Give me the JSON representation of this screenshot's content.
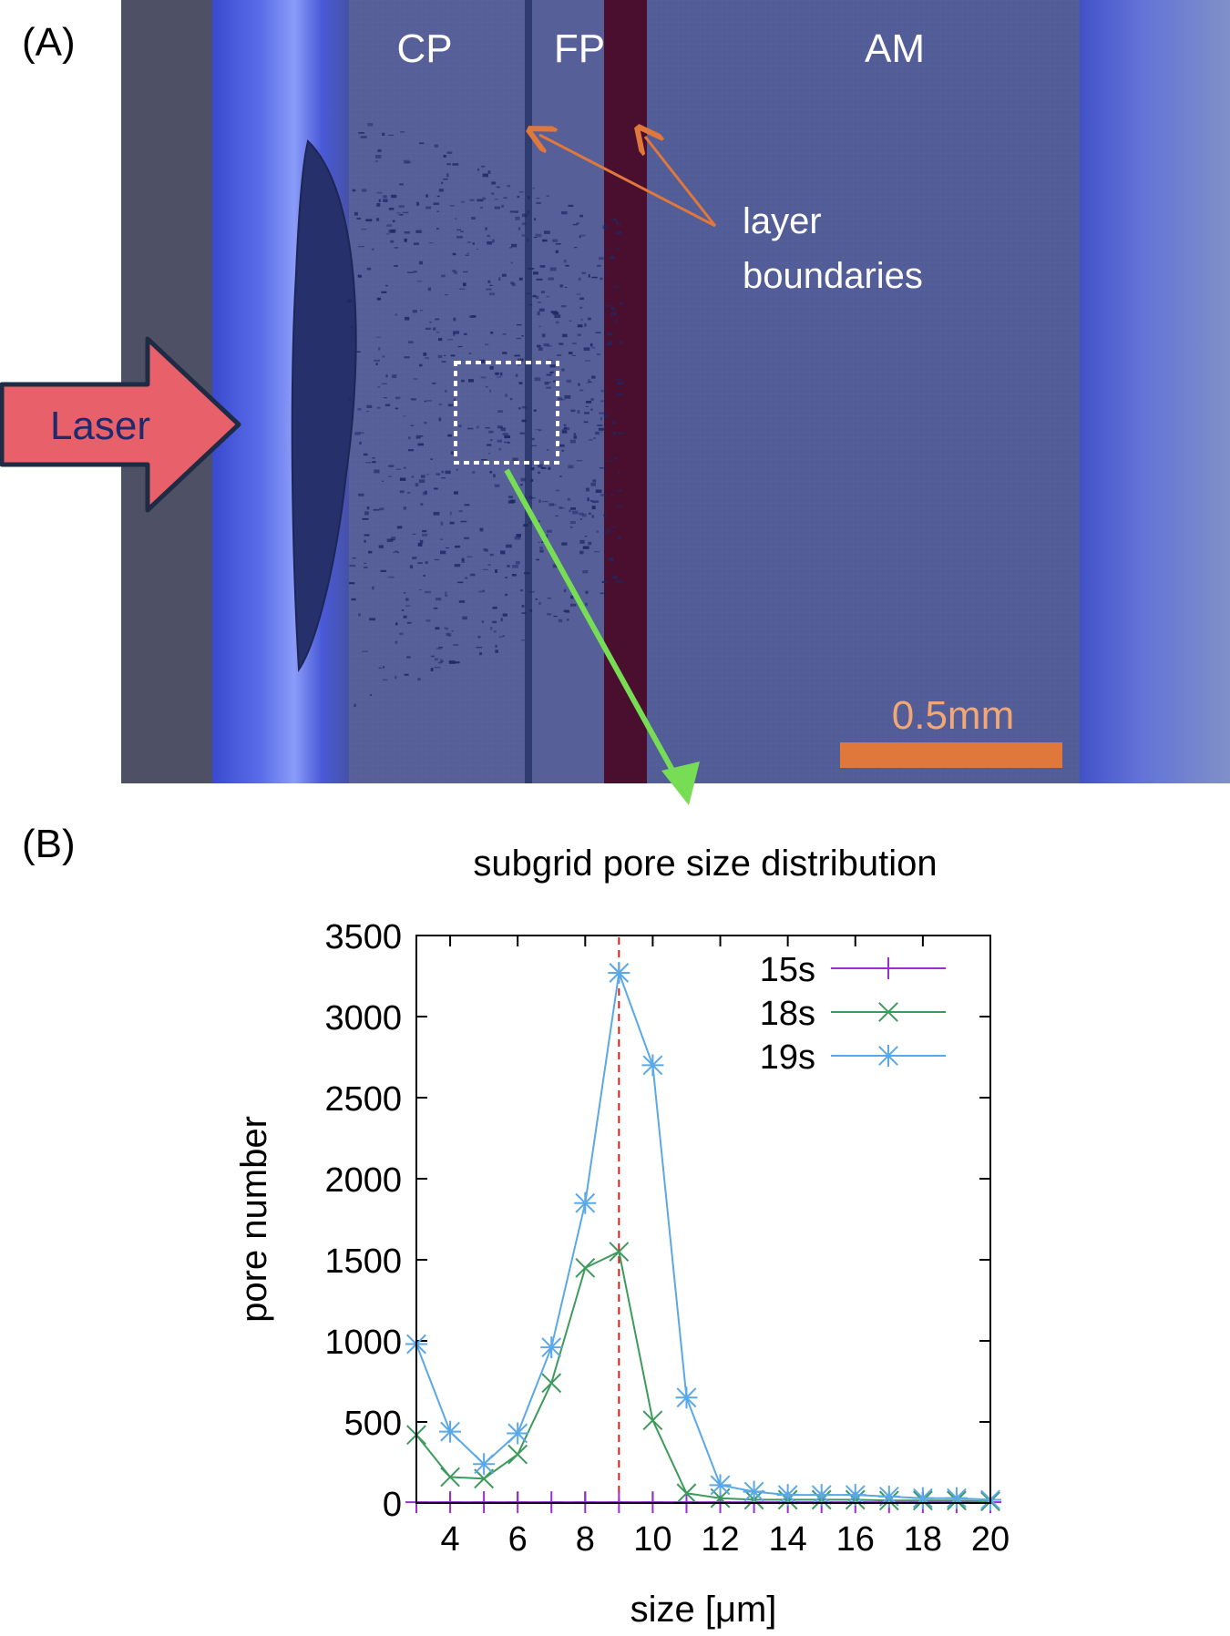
{
  "panel_a": {
    "label": "(A)",
    "layers": [
      "CP",
      "FP",
      "AM"
    ],
    "annotation_lines": [
      "layer",
      "boundaries"
    ],
    "laser_label": "Laser",
    "scale_bar_label": "0.5mm",
    "colors": {
      "background": "#4e5166",
      "cp_layer": "#565f98",
      "am_layer": "#525c97",
      "bright_band": "#3d4fd4",
      "boundary_fp": "#4a0f2e",
      "arrow_orange": "#e0783c",
      "scale_bar": "#e0783c",
      "laser_arrow": "#e8606a",
      "zoom_arrow": "#77dd55"
    }
  },
  "panel_b": {
    "label": "(B)"
  },
  "chart_data": {
    "type": "line",
    "title": "subgrid pore size distribution",
    "xlabel": "size [μm]",
    "ylabel": "pore number",
    "xlim": [
      3,
      20
    ],
    "ylim": [
      0,
      3500
    ],
    "xticks": [
      4,
      6,
      8,
      10,
      12,
      14,
      16,
      18,
      20
    ],
    "yticks": [
      0,
      500,
      1000,
      1500,
      2000,
      2500,
      3000,
      3500
    ],
    "x": [
      3,
      4,
      5,
      6,
      7,
      8,
      9,
      10,
      11,
      12,
      13,
      14,
      15,
      16,
      17,
      18,
      19,
      20
    ],
    "vline_x": 9,
    "vline_color": "#cc2222",
    "legend_position": "top-right",
    "grid": false,
    "series": [
      {
        "name": "15s",
        "color": "#9a2fd0",
        "marker": "plus",
        "values": [
          5,
          5,
          5,
          5,
          5,
          5,
          5,
          5,
          5,
          5,
          5,
          5,
          5,
          5,
          5,
          5,
          5,
          5
        ]
      },
      {
        "name": "18s",
        "color": "#3d9a5c",
        "marker": "cross",
        "values": [
          420,
          160,
          150,
          300,
          740,
          1450,
          1550,
          510,
          60,
          30,
          20,
          20,
          20,
          20,
          15,
          15,
          15,
          10
        ]
      },
      {
        "name": "19s",
        "color": "#5aa8e6",
        "marker": "asterisk",
        "values": [
          980,
          440,
          240,
          430,
          960,
          1850,
          3270,
          2700,
          650,
          110,
          70,
          50,
          50,
          50,
          40,
          30,
          30,
          20
        ]
      }
    ]
  }
}
